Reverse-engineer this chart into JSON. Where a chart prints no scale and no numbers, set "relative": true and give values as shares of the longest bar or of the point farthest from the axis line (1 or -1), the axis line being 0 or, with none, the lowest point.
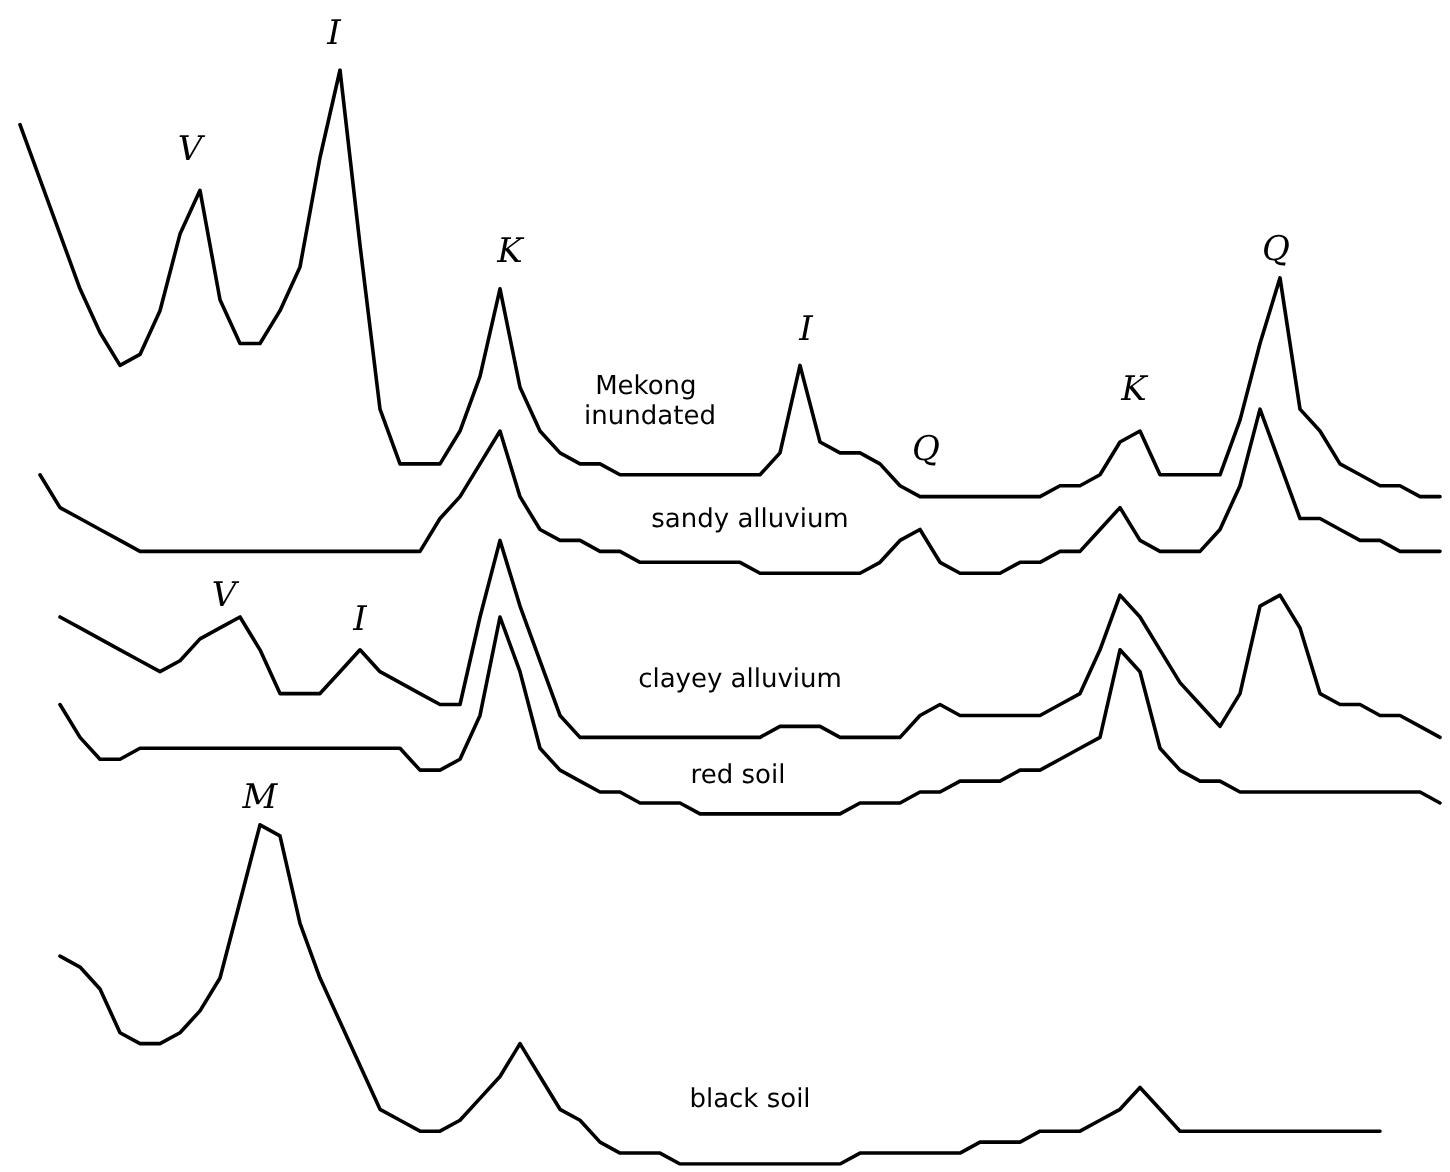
{
  "chart_data": {
    "type": "line",
    "relative": true,
    "tick_labels": false,
    "marker": "none",
    "line_style": "solid",
    "categories": [
      null,
      null,
      null,
      null,
      null,
      null,
      null,
      null,
      null,
      null,
      null,
      null,
      null,
      null,
      null,
      null,
      null,
      null,
      null,
      null,
      null,
      null,
      null,
      null,
      null,
      null,
      null,
      null,
      null,
      null,
      null,
      null,
      null,
      null,
      null,
      null,
      null,
      null,
      null,
      null,
      null,
      null,
      null,
      null,
      null,
      null,
      null,
      null,
      null,
      null,
      null,
      null,
      null,
      null,
      null,
      null,
      null,
      null,
      null,
      null,
      null,
      null,
      null,
      null,
      null,
      null,
      null,
      null,
      null,
      null,
      null,
      null
    ],
    "series": [
      {
        "name": "Mekong inundated",
        "color": "#000000",
        "values": [
          0.95,
          0.9,
          0.85,
          0.8,
          0.76,
          0.73,
          0.74,
          0.78,
          0.85,
          0.89,
          0.79,
          0.75,
          0.75,
          0.78,
          0.82,
          0.92,
          1,
          0.84,
          0.69,
          0.64,
          0.64,
          0.64,
          0.67,
          0.72,
          0.8,
          0.71,
          0.67,
          0.65,
          0.64,
          0.64,
          0.63,
          0.63,
          0.63,
          0.63,
          0.63,
          0.63,
          0.63,
          0.63,
          0.65,
          0.73,
          0.66,
          0.65,
          0.65,
          0.64,
          0.62,
          0.61,
          0.61,
          0.61,
          0.61,
          0.61,
          0.61,
          0.61,
          0.62,
          0.62,
          0.63,
          0.66,
          0.67,
          0.63,
          0.63,
          0.63,
          0.63,
          0.68,
          0.75,
          0.81,
          0.69,
          0.67,
          0.64,
          0.63,
          0.62,
          0.62,
          0.61,
          0.61
        ]
      },
      {
        "name": "sandy alluvium",
        "color": "#000000",
        "values": [
          null,
          0.63,
          0.6,
          0.59,
          0.58,
          0.57,
          0.56,
          0.56,
          0.56,
          0.56,
          0.56,
          0.56,
          0.56,
          0.56,
          0.56,
          0.56,
          0.56,
          0.56,
          0.56,
          0.56,
          0.56,
          0.59,
          0.61,
          0.64,
          0.67,
          0.61,
          0.58,
          0.57,
          0.57,
          0.56,
          0.56,
          0.55,
          0.55,
          0.55,
          0.55,
          0.55,
          0.55,
          0.54,
          0.54,
          0.54,
          0.54,
          0.54,
          0.54,
          0.55,
          0.57,
          0.58,
          0.55,
          0.54,
          0.54,
          0.54,
          0.55,
          0.55,
          0.56,
          0.56,
          0.58,
          0.6,
          0.57,
          0.56,
          0.56,
          0.56,
          0.58,
          0.62,
          0.69,
          0.64,
          0.59,
          0.59,
          0.58,
          0.57,
          0.57,
          0.56,
          0.56,
          0.56
        ]
      },
      {
        "name": "clayey alluvium",
        "color": "#000000",
        "values": [
          null,
          null,
          0.5,
          0.49,
          0.48,
          0.47,
          0.46,
          0.45,
          0.46,
          0.48,
          0.49,
          0.5,
          0.47,
          0.43,
          0.43,
          0.43,
          0.45,
          0.47,
          0.45,
          0.44,
          0.43,
          0.42,
          0.42,
          0.5,
          0.57,
          0.51,
          0.46,
          0.41,
          0.39,
          0.39,
          0.39,
          0.39,
          0.39,
          0.39,
          0.39,
          0.39,
          0.39,
          0.39,
          0.4,
          0.4,
          0.4,
          0.39,
          0.39,
          0.39,
          0.39,
          0.41,
          0.42,
          0.41,
          0.41,
          0.41,
          0.41,
          0.41,
          0.42,
          0.43,
          0.47,
          0.52,
          0.5,
          0.47,
          0.44,
          0.42,
          0.4,
          0.43,
          0.51,
          0.52,
          0.49,
          0.43,
          0.42,
          0.42,
          0.41,
          0.41,
          0.4,
          0.39
        ]
      },
      {
        "name": "red soil",
        "color": "#000000",
        "values": [
          null,
          null,
          0.42,
          0.39,
          0.37,
          0.37,
          0.38,
          0.38,
          0.38,
          0.38,
          0.38,
          0.38,
          0.38,
          0.38,
          0.38,
          0.38,
          0.38,
          0.38,
          0.38,
          0.38,
          0.36,
          0.36,
          0.37,
          0.41,
          0.5,
          0.45,
          0.38,
          0.36,
          0.35,
          0.34,
          0.34,
          0.33,
          0.33,
          0.33,
          0.32,
          0.32,
          0.32,
          0.32,
          0.32,
          0.32,
          0.32,
          0.32,
          0.33,
          0.33,
          0.33,
          0.34,
          0.34,
          0.35,
          0.35,
          0.35,
          0.36,
          0.36,
          0.37,
          0.38,
          0.39,
          0.47,
          0.45,
          0.38,
          0.36,
          0.35,
          0.35,
          0.34,
          0.34,
          0.34,
          0.34,
          0.34,
          0.34,
          0.34,
          0.34,
          0.34,
          0.34,
          0.33
        ]
      },
      {
        "name": "black soil",
        "color": "#000000",
        "values": [
          null,
          null,
          0.19,
          0.18,
          0.16,
          0.12,
          0.11,
          0.11,
          0.12,
          0.14,
          0.17,
          0.24,
          0.31,
          0.3,
          0.22,
          0.17,
          0.13,
          0.09,
          0.05,
          0.04,
          0.03,
          0.03,
          0.04,
          0.06,
          0.08,
          0.11,
          0.08,
          0.05,
          0.04,
          0.02,
          0.01,
          0.01,
          0.01,
          0,
          0,
          0,
          0,
          0,
          0,
          0,
          0,
          0,
          0.01,
          0.01,
          0.01,
          0.01,
          0.01,
          0.01,
          0.02,
          0.02,
          0.02,
          0.03,
          0.03,
          0.03,
          0.04,
          0.05,
          0.07,
          0.05,
          0.03,
          0.03,
          0.03,
          0.03,
          0.03,
          0.03,
          0.03,
          0.03,
          0.03,
          0.03,
          0.03,
          null,
          null,
          null
        ]
      }
    ],
    "annotations": [
      "V",
      "I",
      "K",
      "I",
      "Q",
      "K",
      "Q",
      "V",
      "I",
      "M"
    ]
  }
}
